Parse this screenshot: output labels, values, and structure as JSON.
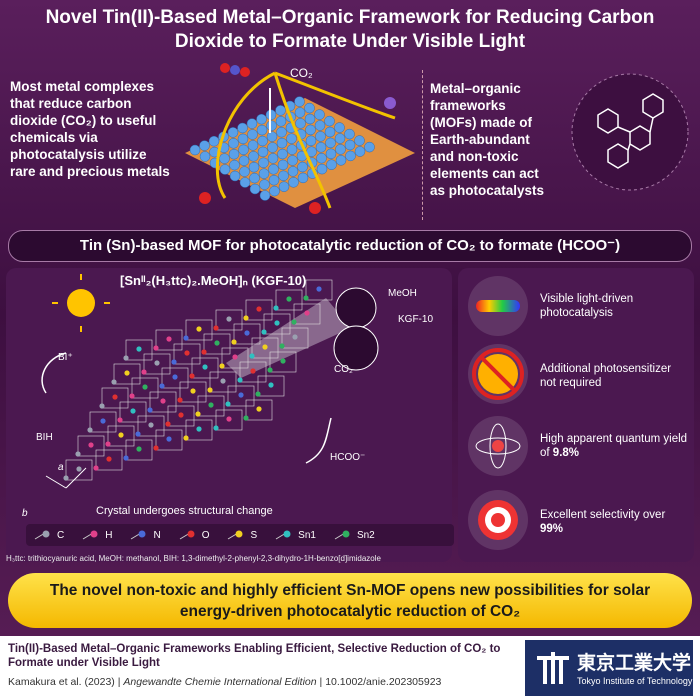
{
  "header": {
    "title": "Novel Tin(II)-Based Metal–Organic Framework for Reducing Carbon Dioxide to Formate Under Visible Light"
  },
  "intro": {
    "left_text": "Most metal complexes that reduce carbon dioxide (CO₂) to useful chemicals via photocatalysis utilize rare and precious metals",
    "co2_label": "CO₂",
    "right_text": "Metal–organic frameworks (MOFs) made of Earth-abundant and non-toxic elements can act as photocatalysts"
  },
  "banner": "Tin (Sn)-based MOF for photocatalytic reduction of CO₂ to formate (HCOO⁻)",
  "figure": {
    "formula": "[Snᴵᴵ₂(H₃ttc)₂.MeOH]ₙ (KGF-10)",
    "meoh": "MeOH",
    "kgf": "KGF-10",
    "co2": "CO₂",
    "formate": "HCOO⁻",
    "bi_plus": "BI⁺",
    "bih": "BIH",
    "axis_a": "a",
    "axis_b": "b",
    "caption": "Crystal undergoes structural change",
    "legend": [
      {
        "name": "C",
        "color": "#9aa0b0"
      },
      {
        "name": "H",
        "color": "#e0408a"
      },
      {
        "name": "N",
        "color": "#4a6ad8"
      },
      {
        "name": "O",
        "color": "#e03030"
      },
      {
        "name": "S",
        "color": "#f0d020"
      },
      {
        "name": "Sn1",
        "color": "#30c0c0"
      },
      {
        "name": "Sn2",
        "color": "#30b060"
      }
    ],
    "footnote": "H₃ttc: trithiocyanuric acid, MeOH: methanol, BIH: 1,3-dimethyl-2-phenyl-2,3-dihydro-1H-benzo[d]imidazole"
  },
  "features": [
    {
      "text": "Visible light-driven photocatalysis"
    },
    {
      "text": "Additional photosensitizer not required"
    },
    {
      "text": "High apparent quantum yield of",
      "emphasis": "9.8%"
    },
    {
      "text": "Excellent selectivity over",
      "emphasis": "99%"
    }
  ],
  "conclusion": "The novel non-toxic and highly efficient Sn-MOF opens new possibilities for solar energy-driven photocatalytic reduction of CO₂",
  "footer": {
    "paper_title": "Tin(II)-Based Metal–Organic Frameworks Enabling Efficient, Selective Reduction of CO₂ to Formate under Visible Light",
    "authors": "Kamakura et al. (2023)",
    "separator": "|",
    "journal": "Angewandte Chemie International Edition",
    "doi": "10.1002/anie.202305923",
    "logo_name": "東京工業大学",
    "logo_subtitle": "Tokyo Institute of Technology"
  }
}
